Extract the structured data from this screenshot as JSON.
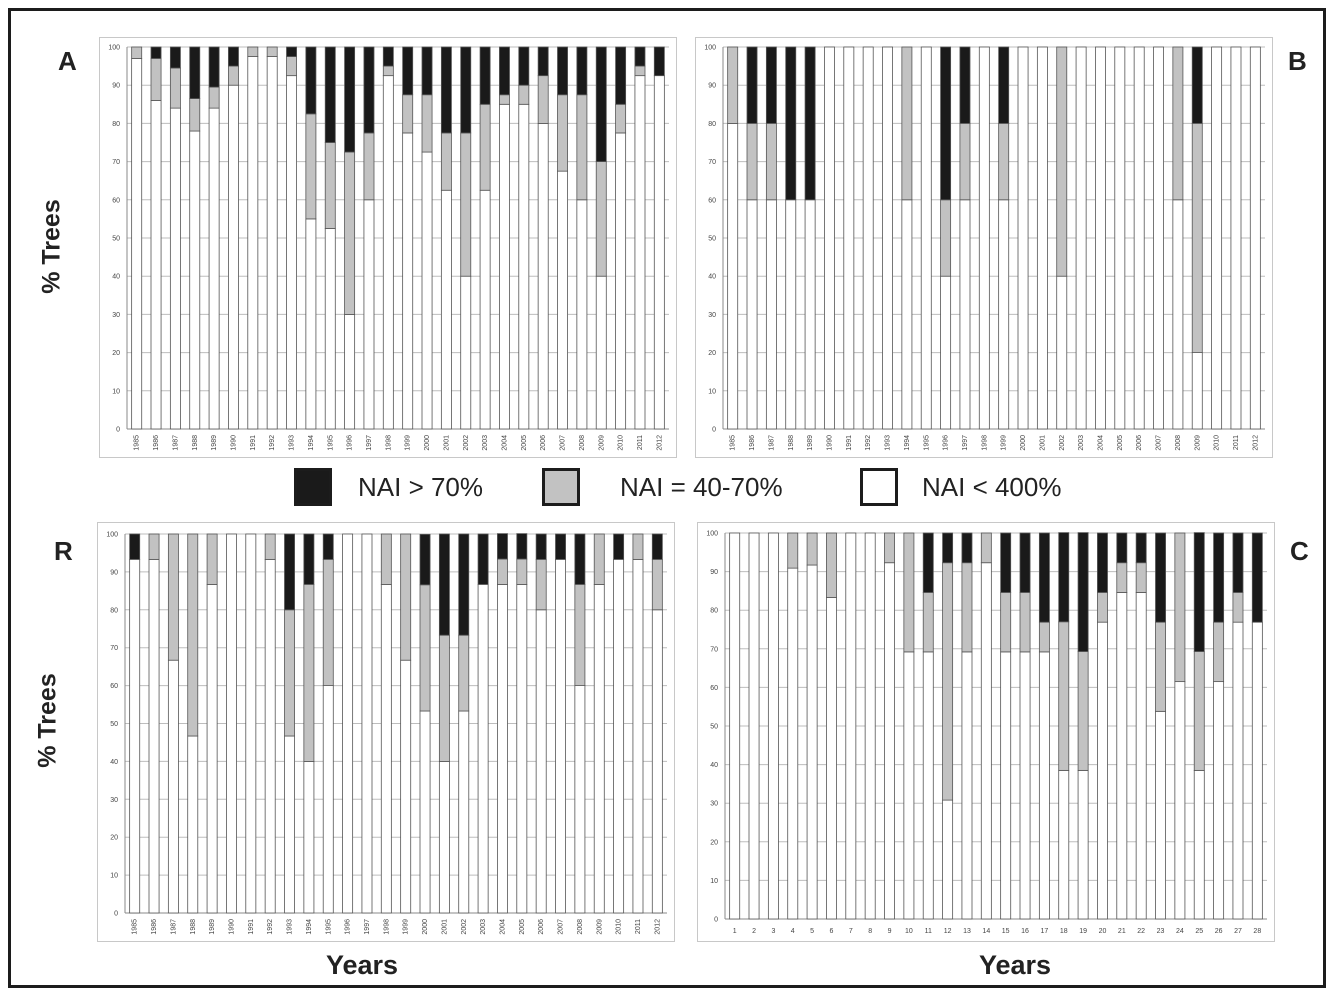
{
  "figure": {
    "panel_labels": [
      "A",
      "B",
      "R",
      "C"
    ],
    "y_axis_label": "% Trees",
    "x_axis_label": "Years"
  },
  "legend": [
    {
      "label": "NAI > 70%",
      "color": "#1a1a1a"
    },
    {
      "label": "NAI = 40-70%",
      "color": "#c2c2c2"
    },
    {
      "label": "NAI < 400%",
      "color": "#ffffff"
    }
  ],
  "colors": {
    "severe": "#1a1a1a",
    "moderate": "#c2c2c2",
    "light": "#ffffff",
    "grid": "#bdbdbd",
    "outline": "#555555"
  },
  "chart_data": [
    {
      "type": "bar",
      "panel": "A",
      "stacked": true,
      "categories": [
        "1985",
        "1986",
        "1987",
        "1988",
        "1989",
        "1990",
        "1991",
        "1992",
        "1993",
        "1994",
        "1995",
        "1996",
        "1997",
        "1998",
        "1999",
        "2000",
        "2001",
        "2002",
        "2003",
        "2004",
        "2005",
        "2006",
        "2007",
        "2008",
        "2009",
        "2010",
        "2011",
        "2012"
      ],
      "ylim": [
        0,
        100
      ],
      "yticks": [
        0,
        10,
        20,
        30,
        40,
        50,
        60,
        70,
        80,
        90,
        100
      ],
      "series": [
        {
          "name": "NAI < 400%",
          "values": [
            97,
            86,
            84,
            78,
            84,
            90,
            97.5,
            97.5,
            92.5,
            55,
            52.5,
            30,
            60,
            92.5,
            77.5,
            72.5,
            62.5,
            40,
            62.5,
            85,
            85,
            80,
            67.5,
            60,
            40,
            77.5,
            92.5,
            92.5
          ]
        },
        {
          "name": "NAI = 40-70%",
          "values": [
            3,
            11,
            10.5,
            8.5,
            5.5,
            5,
            2.5,
            2.5,
            5,
            27.5,
            22.5,
            42.5,
            17.5,
            2.5,
            10,
            15,
            15,
            37.5,
            22.5,
            2.5,
            5,
            12.5,
            20,
            27.5,
            30,
            7.5,
            2.5,
            0
          ]
        },
        {
          "name": "NAI > 70%",
          "values": [
            0,
            3,
            5.5,
            13.5,
            10.5,
            5,
            0,
            0,
            2.5,
            17.5,
            25,
            27.5,
            22.5,
            5,
            12.5,
            12.5,
            22.5,
            22.5,
            15,
            12.5,
            10,
            7.5,
            12.5,
            12.5,
            30,
            15,
            5,
            7.5
          ]
        }
      ]
    },
    {
      "type": "bar",
      "panel": "B",
      "stacked": true,
      "categories": [
        "1985",
        "1986",
        "1987",
        "1988",
        "1989",
        "1990",
        "1991",
        "1992",
        "1993",
        "1994",
        "1995",
        "1996",
        "1997",
        "1998",
        "1999",
        "2000",
        "2001",
        "2002",
        "2003",
        "2004",
        "2005",
        "2006",
        "2007",
        "2008",
        "2009",
        "2010",
        "2011",
        "2012"
      ],
      "ylim": [
        0,
        100
      ],
      "yticks": [
        0,
        10,
        20,
        30,
        40,
        50,
        60,
        70,
        80,
        90,
        100
      ],
      "series": [
        {
          "name": "NAI < 400%",
          "values": [
            80,
            60,
            60,
            60,
            60,
            100,
            100,
            100,
            100,
            60,
            100,
            40,
            60,
            100,
            60,
            100,
            100,
            40,
            100,
            100,
            100,
            100,
            100,
            60,
            20,
            100,
            100,
            100
          ]
        },
        {
          "name": "NAI = 40-70%",
          "values": [
            20,
            20,
            20,
            0,
            0,
            0,
            0,
            0,
            0,
            40,
            0,
            20,
            20,
            0,
            20,
            0,
            0,
            60,
            0,
            0,
            0,
            0,
            0,
            40,
            60,
            0,
            0,
            0
          ]
        },
        {
          "name": "NAI > 70%",
          "values": [
            0,
            20,
            20,
            40,
            40,
            0,
            0,
            0,
            0,
            0,
            0,
            40,
            20,
            0,
            20,
            0,
            0,
            0,
            0,
            0,
            0,
            0,
            0,
            0,
            20,
            0,
            0,
            0
          ]
        }
      ]
    },
    {
      "type": "bar",
      "panel": "R",
      "stacked": true,
      "categories": [
        "1985",
        "1986",
        "1987",
        "1988",
        "1989",
        "1990",
        "1991",
        "1992",
        "1993",
        "1994",
        "1995",
        "1996",
        "1997",
        "1998",
        "1999",
        "2000",
        "2001",
        "2002",
        "2003",
        "2004",
        "2005",
        "2006",
        "2007",
        "2008",
        "2009",
        "2010",
        "2011",
        "2012"
      ],
      "ylim": [
        0,
        100
      ],
      "yticks": [
        0,
        10,
        20,
        30,
        40,
        50,
        60,
        70,
        80,
        90,
        100
      ],
      "series": [
        {
          "name": "NAI < 400%",
          "values": [
            93.3,
            93.3,
            66.7,
            46.7,
            86.7,
            100,
            100,
            93.3,
            46.7,
            40,
            60,
            100,
            100,
            86.7,
            66.7,
            53.3,
            40,
            53.3,
            86.7,
            86.7,
            86.7,
            80,
            93.3,
            60,
            86.7,
            93.3,
            93.3,
            80
          ]
        },
        {
          "name": "NAI = 40-70%",
          "values": [
            0,
            6.7,
            33.3,
            53.3,
            13.3,
            0,
            0,
            6.7,
            33.3,
            46.7,
            33.3,
            0,
            0,
            13.3,
            33.3,
            33.3,
            33.3,
            20,
            0,
            6.7,
            6.7,
            13.3,
            0,
            26.7,
            13.3,
            0,
            6.7,
            13.3
          ]
        },
        {
          "name": "NAI > 70%",
          "values": [
            6.7,
            0,
            0,
            0,
            0,
            0,
            0,
            0,
            20,
            13.3,
            6.7,
            0,
            0,
            0,
            0,
            13.3,
            26.7,
            26.7,
            13.3,
            6.7,
            6.7,
            6.7,
            6.7,
            13.3,
            0,
            6.7,
            0,
            6.7
          ]
        }
      ]
    },
    {
      "type": "bar",
      "panel": "C",
      "stacked": true,
      "categories": [
        "1",
        "2",
        "3",
        "4",
        "5",
        "6",
        "7",
        "8",
        "9",
        "10",
        "11",
        "12",
        "13",
        "14",
        "15",
        "16",
        "17",
        "18",
        "19",
        "20",
        "21",
        "22",
        "23",
        "24",
        "25",
        "26",
        "27",
        "28"
      ],
      "ylim": [
        0,
        100
      ],
      "yticks": [
        0,
        10,
        20,
        30,
        40,
        50,
        60,
        70,
        80,
        90,
        100
      ],
      "series": [
        {
          "name": "NAI < 400%",
          "values": [
            100,
            100,
            100,
            90.9,
            91.7,
            83.3,
            100,
            100,
            92.3,
            69.2,
            69.2,
            30.8,
            69.2,
            92.3,
            69.2,
            69.2,
            69.2,
            38.5,
            38.5,
            76.9,
            84.6,
            84.6,
            53.8,
            61.5,
            38.5,
            61.5,
            76.9,
            76.9
          ]
        },
        {
          "name": "NAI = 40-70%",
          "values": [
            0,
            0,
            0,
            9.1,
            8.3,
            16.7,
            0,
            0,
            7.7,
            30.8,
            15.4,
            61.5,
            23.1,
            7.7,
            15.4,
            15.4,
            7.7,
            38.5,
            30.8,
            7.7,
            7.7,
            7.7,
            23.1,
            38.5,
            30.8,
            15.4,
            7.7,
            0
          ]
        },
        {
          "name": "NAI > 70%",
          "values": [
            0,
            0,
            0,
            0,
            0,
            0,
            0,
            0,
            0,
            0,
            15.4,
            7.7,
            7.7,
            0,
            15.4,
            15.4,
            23.1,
            23.1,
            30.8,
            15.4,
            7.7,
            7.7,
            23.1,
            0,
            30.8,
            23.1,
            15.4,
            23.1
          ]
        }
      ]
    }
  ]
}
